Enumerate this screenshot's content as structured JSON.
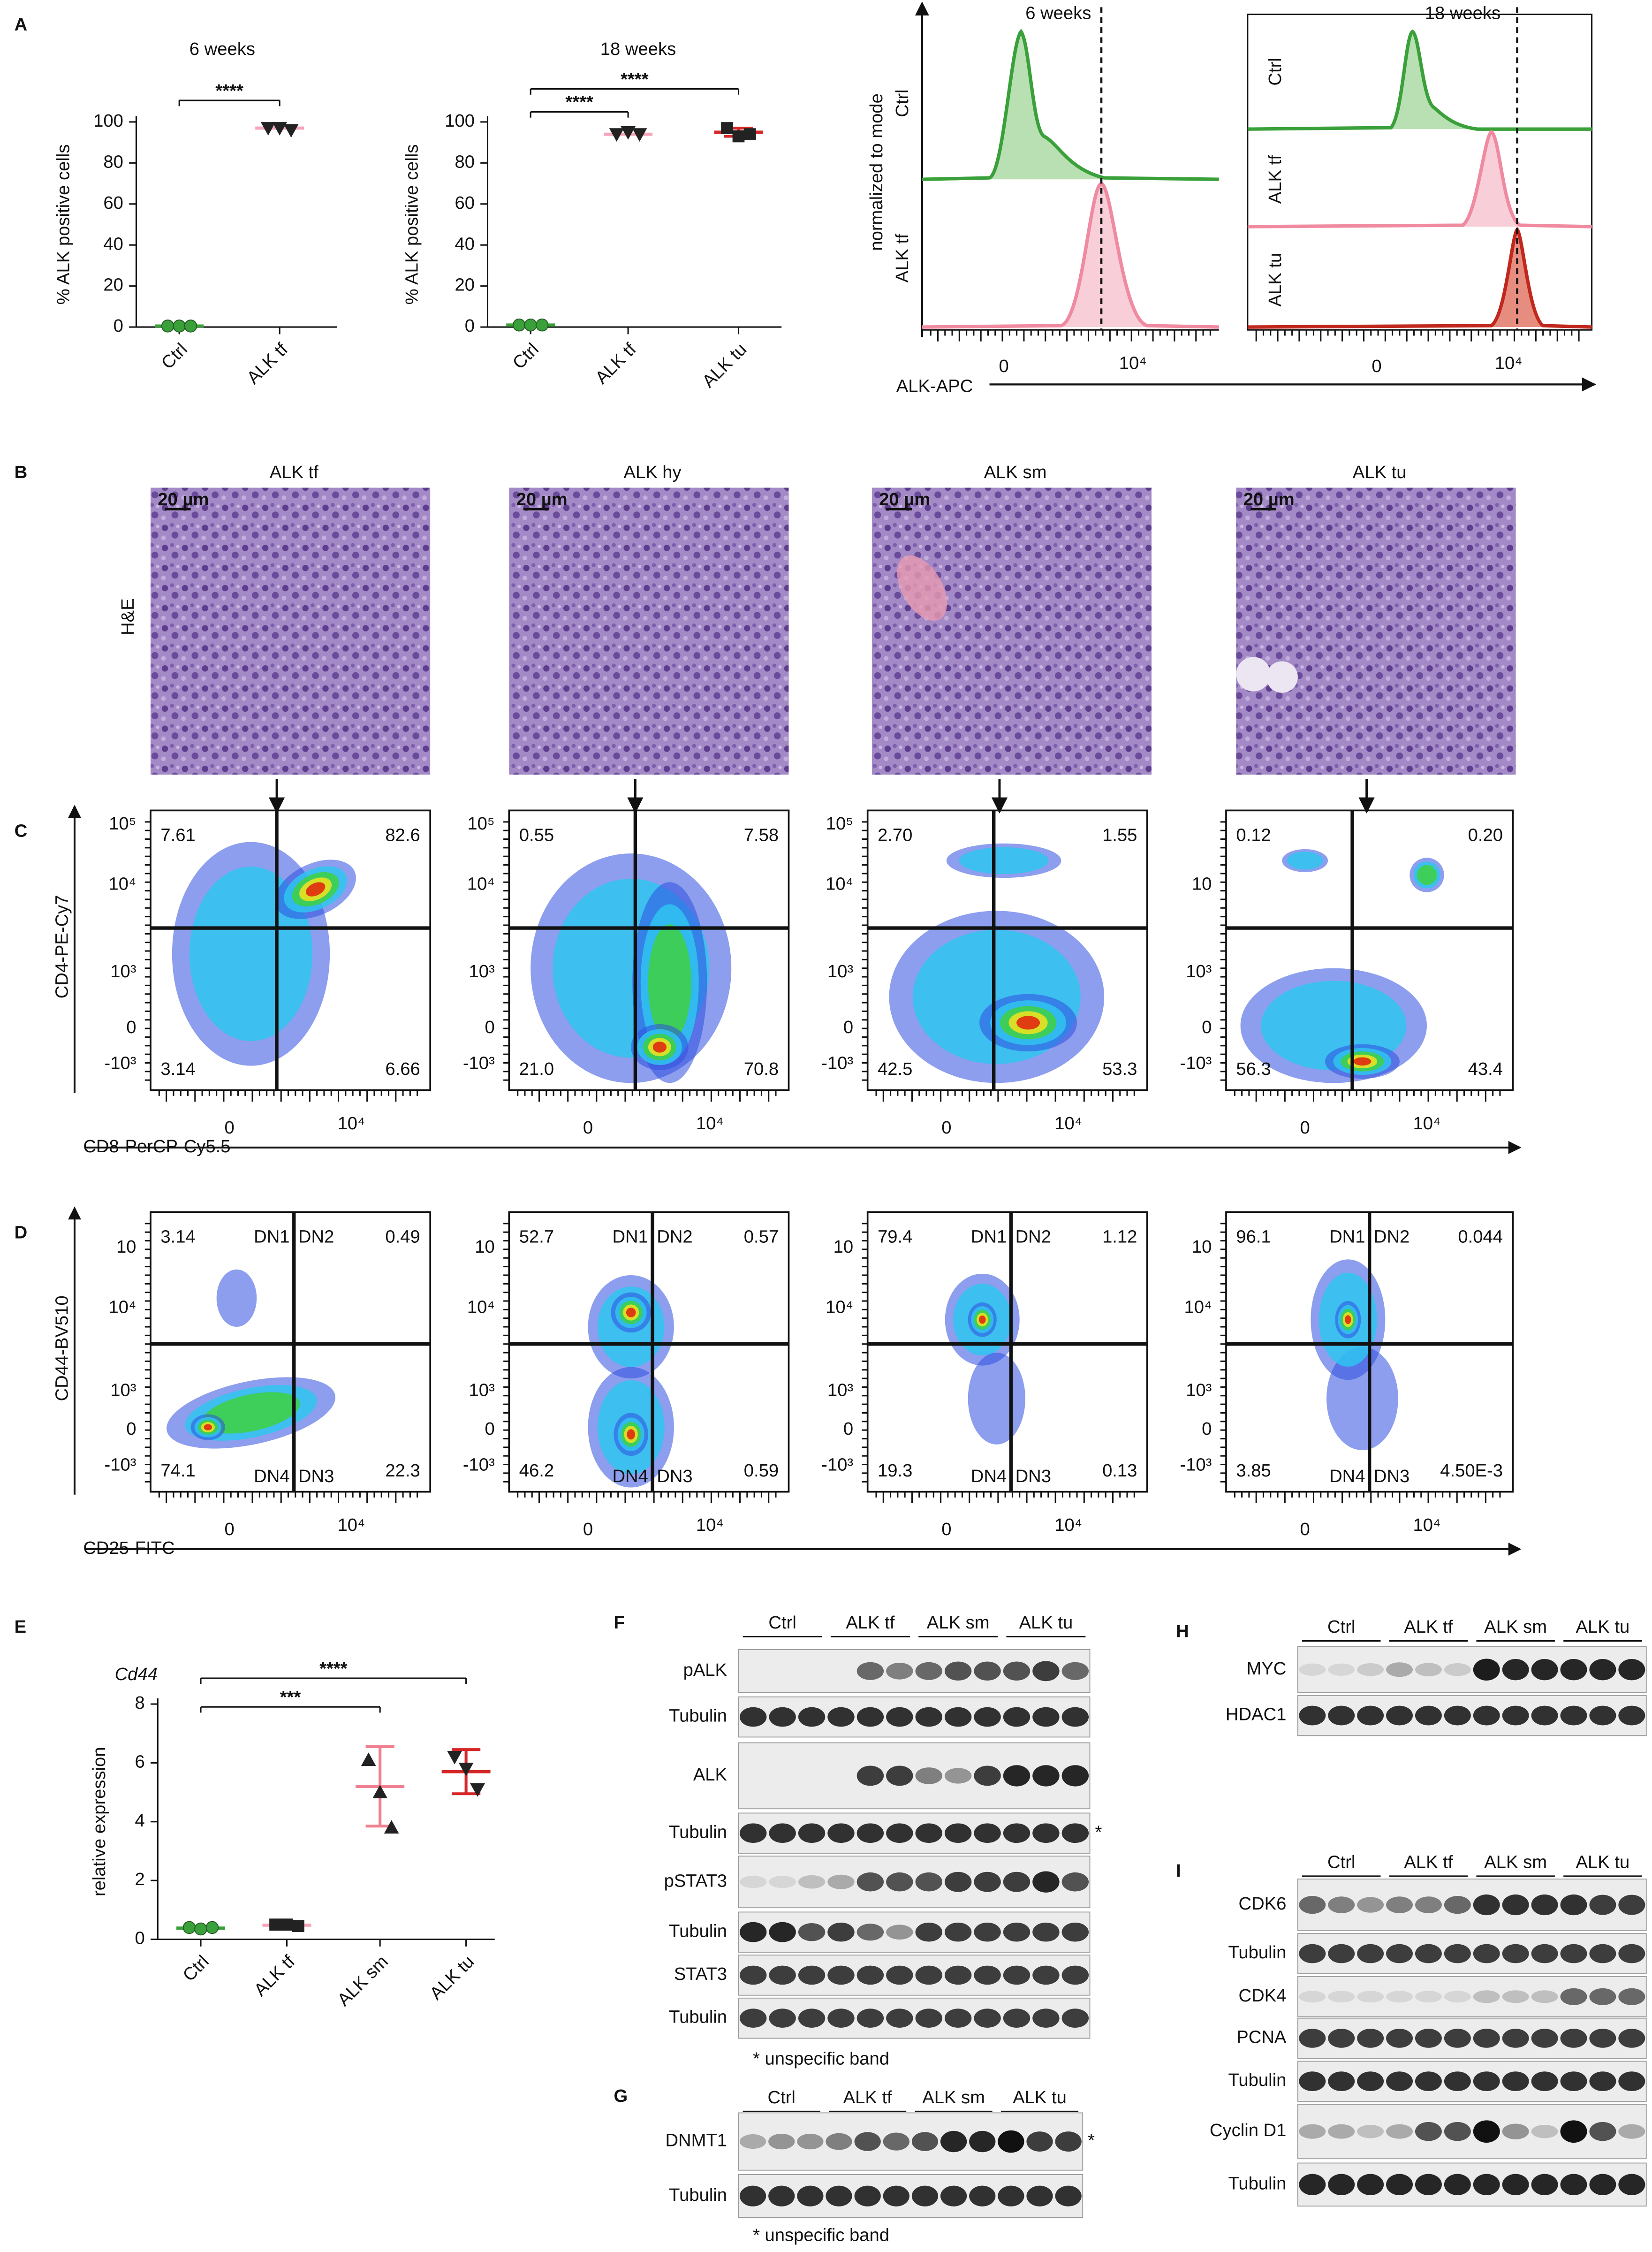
{
  "panel_labels": [
    "A",
    "B",
    "C",
    "D",
    "E",
    "F",
    "G",
    "H",
    "I"
  ],
  "dot_plots": [
    {
      "title": "6 weeks",
      "y_label": "% ALK positive cells",
      "ylim": [
        0,
        100
      ],
      "yticks": [
        0,
        20,
        40,
        60,
        80,
        100
      ],
      "groups": [
        {
          "name": "Ctrl",
          "color": "#3aa03a",
          "marker": "circle",
          "marker_color": "#3aa03a",
          "values": [
            0.5,
            0.5,
            0.5
          ],
          "mean": 0.5
        },
        {
          "name": "ALK tf",
          "color": "#f4a6b8",
          "marker": "triangle-down",
          "marker_color": "#222222",
          "values": [
            97,
            97,
            96
          ],
          "mean": 97
        }
      ],
      "significance": [
        {
          "label": "****",
          "span": [
            0,
            1
          ]
        }
      ]
    },
    {
      "title": "18 weeks",
      "y_label": "% ALK positive cells",
      "ylim": [
        0,
        100
      ],
      "yticks": [
        0,
        20,
        40,
        60,
        80,
        100
      ],
      "groups": [
        {
          "name": "Ctrl",
          "color": "#3aa03a",
          "marker": "circle",
          "marker_color": "#3aa03a",
          "values": [
            1,
            1,
            1
          ],
          "mean": 1
        },
        {
          "name": "ALK tf",
          "color": "#f4a6b8",
          "marker": "triangle-down",
          "marker_color": "#222222",
          "values": [
            94,
            95,
            94
          ],
          "mean": 94
        },
        {
          "name": "ALK tu",
          "color": "#d62728",
          "marker": "square",
          "marker_color": "#222222",
          "values": [
            97,
            93,
            94
          ],
          "mean": 95,
          "sd": 2
        }
      ],
      "significance": [
        {
          "label": "****",
          "span": [
            0,
            1
          ]
        },
        {
          "label": "****",
          "span": [
            0,
            2
          ]
        }
      ]
    },
    {
      "title": "Cd44",
      "y_label": "relative expression",
      "ylim": [
        0,
        8
      ],
      "yticks": [
        0,
        2,
        4,
        6,
        8
      ],
      "groups": [
        {
          "name": "Ctrl",
          "color": "#3aa03a",
          "marker": "circle",
          "marker_color": "#3aa03a",
          "values": [
            0.4,
            0.35,
            0.4
          ],
          "mean": 0.38
        },
        {
          "name": "ALK tf",
          "color": "#f4a6b8",
          "marker": "square",
          "marker_color": "#222222",
          "values": [
            0.5,
            0.5,
            0.45
          ],
          "mean": 0.48
        },
        {
          "name": "ALK sm",
          "color": "#f08090",
          "marker": "triangle-up",
          "marker_color": "#222222",
          "values": [
            6.1,
            5.0,
            3.8
          ],
          "mean": 5.2,
          "sd": 1.35
        },
        {
          "name": "ALK tu",
          "color": "#d62728",
          "marker": "triangle-down",
          "marker_color": "#222222",
          "values": [
            6.2,
            5.8,
            5.1
          ],
          "mean": 5.7,
          "sd": 0.75
        }
      ],
      "significance": [
        {
          "label": "***",
          "span": [
            0,
            2
          ]
        },
        {
          "label": "****",
          "span": [
            0,
            3
          ]
        }
      ]
    }
  ],
  "histograms": {
    "y_label": "normalized to mode",
    "x_label": "ALK-APC",
    "panels": [
      {
        "title": "6 weeks",
        "rows": [
          "Ctrl",
          "ALK tf"
        ],
        "x_tick_labels": [
          "0",
          "10⁴"
        ]
      },
      {
        "title": "18 weeks",
        "rows": [
          "Ctrl",
          "ALK tf",
          "ALK tu"
        ],
        "x_tick_labels": [
          "0",
          "10⁴"
        ]
      }
    ]
  },
  "histology": {
    "stain": "H&E",
    "scale_bar": "20 µm",
    "samples": [
      "ALK tf",
      "ALK hy",
      "ALK sm",
      "ALK tu"
    ]
  },
  "flow_cd4_cd8": {
    "y_label": "CD4-PE-Cy7",
    "x_label": "CD8-PerCP-Cy5.5",
    "plots": [
      {
        "y_tick_labels": [
          "10⁵",
          "10⁴",
          "10³",
          "0",
          "-10³"
        ],
        "x_tick_labels": [
          "0",
          "10⁴"
        ],
        "quadrants": [
          "7.61",
          "82.6",
          "3.14",
          "6.66"
        ]
      },
      {
        "y_tick_labels": [
          "10⁵",
          "10⁴",
          "10³",
          "0",
          "-10³"
        ],
        "x_tick_labels": [
          "0",
          "10⁴"
        ],
        "quadrants": [
          "0.55",
          "7.58",
          "21.0",
          "70.8"
        ]
      },
      {
        "y_tick_labels": [
          "10⁵",
          "10⁴",
          "10³",
          "0",
          "-10³"
        ],
        "x_tick_labels": [
          "0",
          "10⁴"
        ],
        "quadrants": [
          "2.70",
          "1.55",
          "42.5",
          "53.3"
        ]
      },
      {
        "y_tick_labels": [
          null,
          "10",
          "10³",
          "0",
          "-10³"
        ],
        "x_tick_labels": [
          "0",
          "10⁴"
        ],
        "quadrants": [
          "0.12",
          "0.20",
          "56.3",
          "43.4"
        ]
      }
    ]
  },
  "flow_cd44_cd25": {
    "y_label": "CD44-BV510",
    "x_label": "CD25-FITC",
    "gates": [
      "DN1",
      "DN2",
      "DN4",
      "DN3"
    ],
    "plots": [
      {
        "y_tick_labels": [
          "10",
          "10⁴",
          "10³",
          "0",
          "-10³"
        ],
        "x_tick_labels": [
          "0",
          "10⁴"
        ],
        "quadrants": [
          "3.14",
          "0.49",
          "74.1",
          "22.3"
        ]
      },
      {
        "y_tick_labels": [
          "10",
          "10⁴",
          "10³",
          "0",
          "-10³"
        ],
        "x_tick_labels": [
          "0",
          "10⁴"
        ],
        "quadrants": [
          "52.7",
          "0.57",
          "46.2",
          "0.59"
        ]
      },
      {
        "y_tick_labels": [
          "10",
          "10⁴",
          "10³",
          "0",
          "-10³"
        ],
        "x_tick_labels": [
          "0",
          "10⁴"
        ],
        "quadrants": [
          "79.4",
          "1.12",
          "19.3",
          "0.13"
        ]
      },
      {
        "y_tick_labels": [
          "10",
          "10⁴",
          "10³",
          "0",
          "-10³"
        ],
        "x_tick_labels": [
          "0",
          "10⁴"
        ],
        "quadrants": [
          "96.1",
          "0.044",
          "3.85",
          "4.50E-3"
        ]
      }
    ]
  },
  "western_blots": [
    {
      "groups": [
        "Ctrl",
        "ALK tf",
        "ALK sm",
        "ALK tu"
      ],
      "rows": [
        "pALK",
        "Tubulin",
        "ALK",
        "Tubulin",
        "pSTAT3",
        "Tubulin",
        "STAT3",
        "Tubulin"
      ],
      "marker": "*",
      "note": "* unspecific band"
    },
    {
      "groups": [
        "Ctrl",
        "ALK tf",
        "ALK sm",
        "ALK tu"
      ],
      "rows": [
        "DNMT1",
        "Tubulin"
      ],
      "marker": "*",
      "note": "* unspecific band"
    },
    {
      "groups": [
        "Ctrl",
        "ALK tf",
        "ALK sm",
        "ALK tu"
      ],
      "rows": [
        "MYC",
        "HDAC1"
      ]
    },
    {
      "groups": [
        "Ctrl",
        "ALK tf",
        "ALK sm",
        "ALK tu"
      ],
      "rows": [
        "CDK6",
        "Tubulin",
        "CDK4",
        "PCNA",
        "Tubulin",
        "Cyclin D1",
        "Tubulin"
      ]
    }
  ]
}
